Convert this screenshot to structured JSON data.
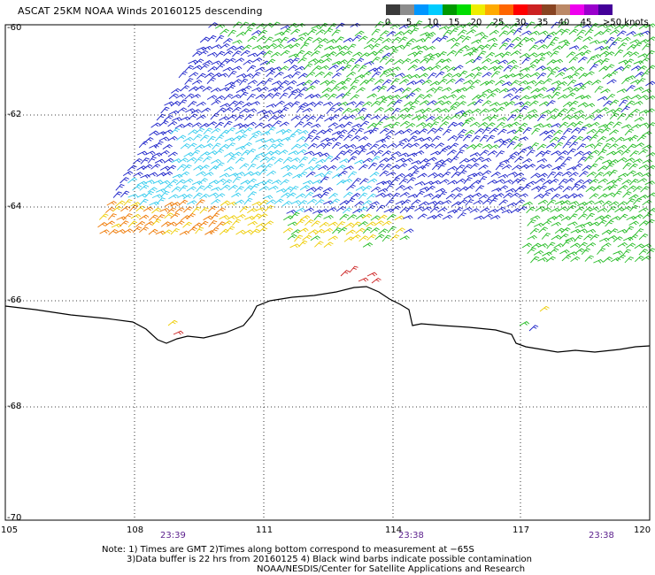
{
  "title": "ASCAT 25KM NOAA Winds 20160125 descending",
  "legend": {
    "ticks": [
      "0",
      "5",
      "10",
      "15",
      "20",
      "25",
      "30",
      "35",
      "40",
      "45",
      ">50 knots"
    ],
    "colors": [
      "#3a3a3a",
      "#8c8c8c",
      "#0096ff",
      "#00ccff",
      "#009900",
      "#00dd00",
      "#eeee00",
      "#ffaa00",
      "#ff6600",
      "#ff0000",
      "#cc2222",
      "#884422",
      "#bb8866",
      "#ee00ee",
      "#9900cc",
      "#440099"
    ]
  },
  "map": {
    "lat_labels": [
      "-60",
      "-62",
      "-64",
      "-66",
      "-68",
      "-70"
    ],
    "lon_labels": [
      "105",
      "108",
      "111",
      "114",
      "117",
      "120"
    ],
    "times": [
      "23:39",
      "23:38",
      "23:38"
    ],
    "colors": {
      "frame": "#000000",
      "grid": "#000000",
      "coast": "#000000",
      "dark_blue": "#1a20c8",
      "cyan": "#33ccee",
      "green": "#22bb22",
      "yellow": "#eecc00",
      "orange": "#ee7700",
      "red": "#cc2222"
    }
  },
  "notes": {
    "line1": "Note: 1) Times are GMT 2)Times along bottom correspond to measurement at −65S",
    "line2": "3)Data buffer is 22 hrs from 20160125 4) Black wind barbs indicate possible contamination",
    "line3": "NOAA/NESDIS/Center for Satellite Applications and Research"
  }
}
